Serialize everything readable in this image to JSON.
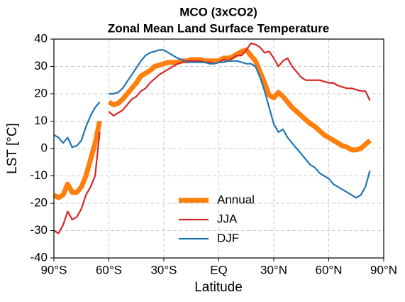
{
  "chart_data": {
    "type": "line",
    "title": "MCO (3xCO2)",
    "subtitle": "Zonal Mean Land Surface Temperature",
    "xlabel": "Latitude",
    "ylabel": "LST [°C]",
    "x": [
      -90,
      -87.5,
      -85,
      -82.5,
      -80,
      -77.5,
      -75,
      -72.5,
      -70,
      -67.5,
      -65,
      -62.5,
      -60,
      -57.5,
      -55,
      -52.5,
      -50,
      -47.5,
      -45,
      -42.5,
      -40,
      -37.5,
      -35,
      -32.5,
      -30,
      -27.5,
      -25,
      -22.5,
      -20,
      -17.5,
      -15,
      -12.5,
      -10,
      -7.5,
      -5,
      -2.5,
      0,
      2.5,
      5,
      7.5,
      10,
      12.5,
      15,
      17.5,
      20,
      22.5,
      25,
      27.5,
      30,
      32.5,
      35,
      37.5,
      40,
      42.5,
      45,
      47.5,
      50,
      52.5,
      55,
      57.5,
      60,
      62.5,
      65,
      67.5,
      70,
      72.5,
      75,
      77.5,
      80,
      82.5
    ],
    "series": [
      {
        "name": "Annual",
        "color": "#ff7f0e",
        "width": 7,
        "values": [
          -17,
          -18,
          -17,
          -13,
          -16,
          -16,
          -14,
          -10,
          -4,
          2,
          10,
          null,
          17,
          16,
          16.5,
          18,
          20,
          22,
          24,
          26.5,
          27.5,
          28.5,
          30,
          30.5,
          31,
          31.5,
          31.5,
          31.5,
          32,
          32,
          32.5,
          32.5,
          32.5,
          32,
          32,
          32,
          32,
          33,
          33,
          33.5,
          34.5,
          35.5,
          36,
          34,
          32,
          28,
          24,
          19.5,
          18.5,
          20.5,
          19,
          17,
          15,
          13.5,
          12,
          10.5,
          9,
          8,
          6.5,
          5,
          4,
          3,
          2,
          1,
          0.5,
          -0.5,
          -0.5,
          0,
          1.5,
          3
        ]
      },
      {
        "name": "JJA",
        "color": "#d62728",
        "width": 2.2,
        "values": [
          -30,
          -31,
          -28,
          -23,
          -26,
          -25,
          -22,
          -17,
          -14,
          -10,
          6,
          null,
          13.5,
          12,
          13,
          14,
          16,
          18,
          19,
          21,
          22,
          24,
          25.5,
          27,
          28,
          29,
          30,
          31,
          31.5,
          32,
          32,
          32,
          32,
          31.5,
          31.5,
          31,
          31.5,
          32.5,
          32,
          33,
          34,
          34,
          36,
          38.5,
          38,
          37,
          35,
          35.5,
          33,
          30,
          32,
          33,
          30,
          28,
          26,
          25,
          25,
          25,
          25,
          24.5,
          24,
          24,
          23,
          22.5,
          22,
          22,
          21.5,
          21,
          21,
          17.5
        ]
      },
      {
        "name": "DJF",
        "color": "#1f77b4",
        "width": 2.2,
        "values": [
          5,
          4,
          2,
          4,
          0.5,
          1,
          3,
          8,
          12,
          15,
          17,
          null,
          20,
          20,
          20.5,
          22,
          24.5,
          27,
          29.5,
          32,
          34,
          35,
          35.5,
          36,
          36,
          35,
          34,
          33,
          32.5,
          31.5,
          31.5,
          31.5,
          31.5,
          31.5,
          31,
          31,
          31.5,
          31.5,
          32,
          32,
          32,
          31.5,
          31,
          31,
          30,
          26,
          21,
          15,
          9,
          6,
          7,
          4,
          2,
          0,
          -2,
          -4,
          -6,
          -7,
          -9,
          -10,
          -11,
          -13,
          -14,
          -15,
          -16,
          -17,
          -18,
          -17,
          -14,
          -8
        ]
      }
    ],
    "xlim": [
      -90,
      90
    ],
    "xticks": [
      {
        "value": -90,
        "label": "90°S"
      },
      {
        "value": -60,
        "label": "60°S"
      },
      {
        "value": -30,
        "label": "30°S"
      },
      {
        "value": 0,
        "label": "EQ"
      },
      {
        "value": 30,
        "label": "30°N"
      },
      {
        "value": 60,
        "label": "60°N"
      },
      {
        "value": 90,
        "label": "90°N"
      }
    ],
    "ylim": [
      -40,
      40
    ],
    "yticks": [
      -40,
      -30,
      -20,
      -10,
      0,
      10,
      20,
      30,
      40
    ],
    "grid": true,
    "legend": "lower center"
  }
}
